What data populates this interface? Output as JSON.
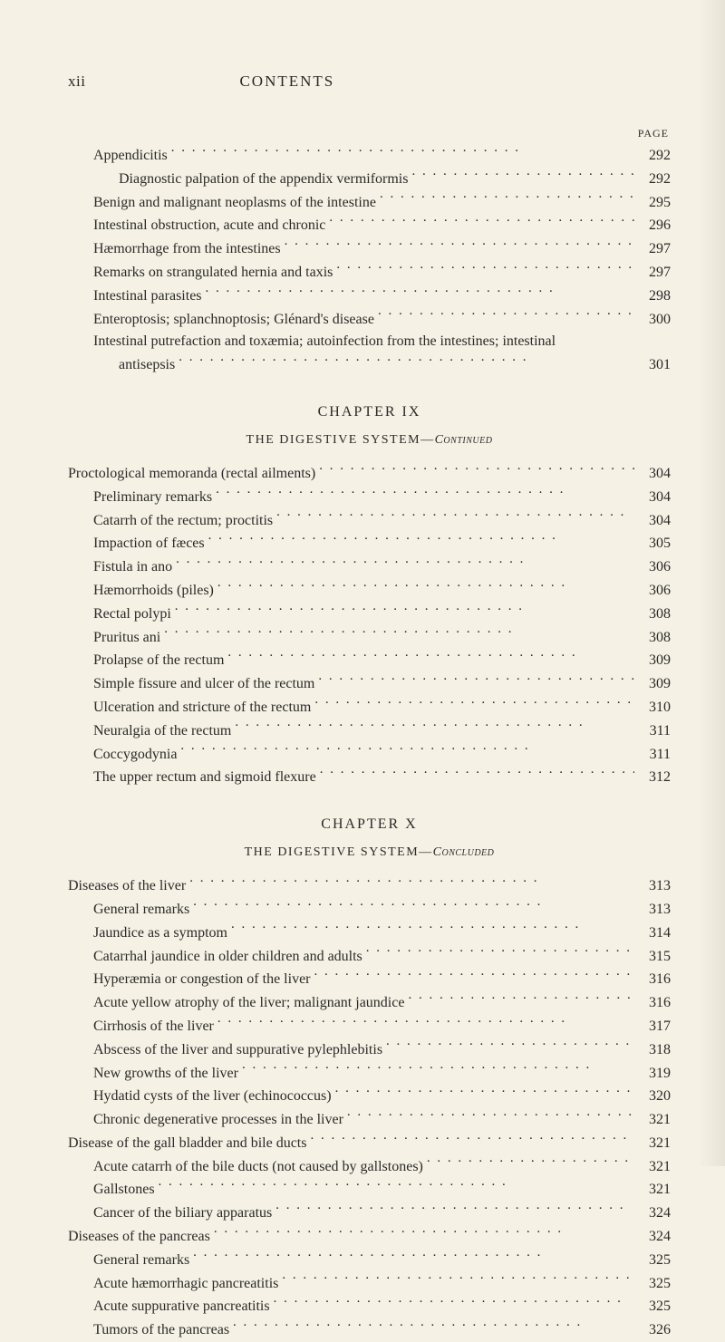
{
  "header": {
    "page_number_roman": "xii",
    "running_title": "CONTENTS",
    "page_label": "PAGE"
  },
  "section_a": {
    "entries": [
      {
        "title": "Appendicitis",
        "page": "292",
        "indent": 1
      },
      {
        "title": "Diagnostic palpation of the appendix vermiformis",
        "page": "292",
        "indent": 2
      },
      {
        "title": "Benign and malignant neoplasms of the intestine",
        "page": "295",
        "indent": 1
      },
      {
        "title": "Intestinal obstruction, acute and chronic",
        "page": "296",
        "indent": 1
      },
      {
        "title": "Hæmorrhage from the intestines",
        "page": "297",
        "indent": 1
      },
      {
        "title": "Remarks on strangulated hernia and taxis",
        "page": "297",
        "indent": 1
      },
      {
        "title": "Intestinal parasites",
        "page": "298",
        "indent": 1
      },
      {
        "title": "Enteroptosis; splanchnoptosis; Glénard's disease",
        "page": "300",
        "indent": 1
      }
    ],
    "wrapped": {
      "line1": "Intestinal putrefaction and toxæmia; autoinfection from the intestines; intestinal",
      "line2": "antisepsis",
      "page": "301"
    }
  },
  "chapter_ix": {
    "heading": "CHAPTER IX",
    "subtitle_caps": "THE DIGESTIVE SYSTEM—",
    "subtitle_ital": "Continued",
    "entries": [
      {
        "title": "Proctological memoranda (rectal ailments)",
        "page": "304",
        "indent": 0
      },
      {
        "title": "Preliminary remarks",
        "page": "304",
        "indent": 1
      },
      {
        "title": "Catarrh of the rectum; proctitis",
        "page": "304",
        "indent": 1
      },
      {
        "title": "Impaction of fæces",
        "page": "305",
        "indent": 1
      },
      {
        "title": "Fistula in ano",
        "page": "306",
        "indent": 1
      },
      {
        "title": "Hæmorrhoids (piles)",
        "page": "306",
        "indent": 1
      },
      {
        "title": "Rectal polypi",
        "page": "308",
        "indent": 1
      },
      {
        "title": "Pruritus ani",
        "page": "308",
        "indent": 1
      },
      {
        "title": "Prolapse of the rectum",
        "page": "309",
        "indent": 1
      },
      {
        "title": "Simple fissure and ulcer of the rectum",
        "page": "309",
        "indent": 1
      },
      {
        "title": "Ulceration and stricture of the rectum",
        "page": "310",
        "indent": 1
      },
      {
        "title": "Neuralgia of the rectum",
        "page": "311",
        "indent": 1
      },
      {
        "title": "Coccygodynia",
        "page": "311",
        "indent": 1
      },
      {
        "title": "The upper rectum and sigmoid flexure",
        "page": "312",
        "indent": 1
      }
    ]
  },
  "chapter_x": {
    "heading": "CHAPTER X",
    "subtitle_caps": "THE DIGESTIVE SYSTEM—",
    "subtitle_ital": "Concluded",
    "entries": [
      {
        "title": "Diseases of the liver",
        "page": "313",
        "indent": 0
      },
      {
        "title": "General remarks",
        "page": "313",
        "indent": 1
      },
      {
        "title": "Jaundice as a symptom",
        "page": "314",
        "indent": 1
      },
      {
        "title": "Catarrhal jaundice in older children and adults",
        "page": "315",
        "indent": 1
      },
      {
        "title": "Hyperæmia or congestion of the liver",
        "page": "316",
        "indent": 1
      },
      {
        "title": "Acute yellow atrophy of the liver; malignant jaundice",
        "page": "316",
        "indent": 1
      },
      {
        "title": "Cirrhosis of the liver",
        "page": "317",
        "indent": 1
      },
      {
        "title": "Abscess of the liver and suppurative pylephlebitis",
        "page": "318",
        "indent": 1
      },
      {
        "title": "New growths of the liver",
        "page": "319",
        "indent": 1
      },
      {
        "title": "Hydatid cysts of the liver (echinococcus)",
        "page": "320",
        "indent": 1
      },
      {
        "title": "Chronic degenerative processes in the liver",
        "page": "321",
        "indent": 1
      },
      {
        "title": "Disease of the gall bladder and bile ducts",
        "page": "321",
        "indent": 0
      },
      {
        "title": "Acute catarrh of the bile ducts (not caused by gallstones)",
        "page": "321",
        "indent": 1
      },
      {
        "title": "Gallstones",
        "page": "321",
        "indent": 1
      },
      {
        "title": "Cancer of the biliary apparatus",
        "page": "324",
        "indent": 1
      },
      {
        "title": "Diseases of the pancreas",
        "page": "324",
        "indent": 0
      },
      {
        "title": "General remarks",
        "page": "325",
        "indent": 1
      },
      {
        "title": "Acute hæmorrhagic pancreatitis",
        "page": "325",
        "indent": 1
      },
      {
        "title": "Acute suppurative pancreatitis",
        "page": "325",
        "indent": 1
      },
      {
        "title": "Tumors of the pancreas",
        "page": "326",
        "indent": 1
      }
    ]
  }
}
